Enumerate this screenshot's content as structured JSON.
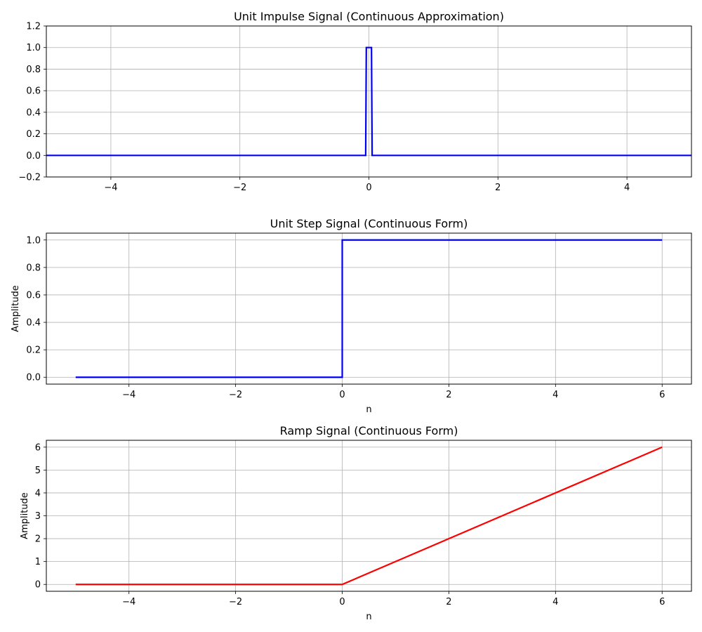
{
  "chart_data": [
    {
      "type": "line",
      "title": "Unit Impulse Signal (Continuous Approximation)",
      "xlabel": "",
      "ylabel": "",
      "xlim": [
        -5,
        5
      ],
      "ylim": [
        -0.2,
        1.2
      ],
      "xticks": [
        -4,
        -2,
        0,
        2,
        4
      ],
      "xtick_labels": [
        "−4",
        "−2",
        "0",
        "2",
        "4"
      ],
      "yticks": [
        -0.2,
        0.0,
        0.2,
        0.4,
        0.6,
        0.8,
        1.0,
        1.2
      ],
      "ytick_labels": [
        "−0.2",
        "0.0",
        "0.2",
        "0.4",
        "0.6",
        "0.8",
        "1.0",
        "1.2"
      ],
      "grid": true,
      "series": [
        {
          "color": "#0000ff",
          "x": [
            -5,
            -0.05,
            -0.04,
            0.04,
            0.05,
            5
          ],
          "y": [
            0,
            0,
            1,
            1,
            0,
            0
          ]
        }
      ]
    },
    {
      "type": "line",
      "title": "Unit Step Signal (Continuous Form)",
      "xlabel": "n",
      "ylabel": "Amplitude",
      "xlim": [
        -5.55,
        6.55
      ],
      "ylim": [
        -0.05,
        1.05
      ],
      "xticks": [
        -4,
        -2,
        0,
        2,
        4,
        6
      ],
      "xtick_labels": [
        "−4",
        "−2",
        "0",
        "2",
        "4",
        "6"
      ],
      "yticks": [
        0.0,
        0.2,
        0.4,
        0.6,
        0.8,
        1.0
      ],
      "ytick_labels": [
        "0.0",
        "0.2",
        "0.4",
        "0.6",
        "0.8",
        "1.0"
      ],
      "grid": true,
      "series": [
        {
          "color": "#0000ff",
          "x": [
            -5,
            0,
            0,
            6
          ],
          "y": [
            0,
            0,
            1,
            1
          ]
        }
      ]
    },
    {
      "type": "line",
      "title": "Ramp Signal (Continuous Form)",
      "xlabel": "n",
      "ylabel": "Amplitude",
      "xlim": [
        -5.55,
        6.55
      ],
      "ylim": [
        -0.3,
        6.3
      ],
      "xticks": [
        -4,
        -2,
        0,
        2,
        4,
        6
      ],
      "xtick_labels": [
        "−4",
        "−2",
        "0",
        "2",
        "4",
        "6"
      ],
      "yticks": [
        0,
        1,
        2,
        3,
        4,
        5,
        6
      ],
      "ytick_labels": [
        "0",
        "1",
        "2",
        "3",
        "4",
        "5",
        "6"
      ],
      "grid": true,
      "series": [
        {
          "color": "#ff0000",
          "x": [
            -5,
            0,
            6
          ],
          "y": [
            0,
            0,
            6
          ]
        }
      ]
    }
  ]
}
